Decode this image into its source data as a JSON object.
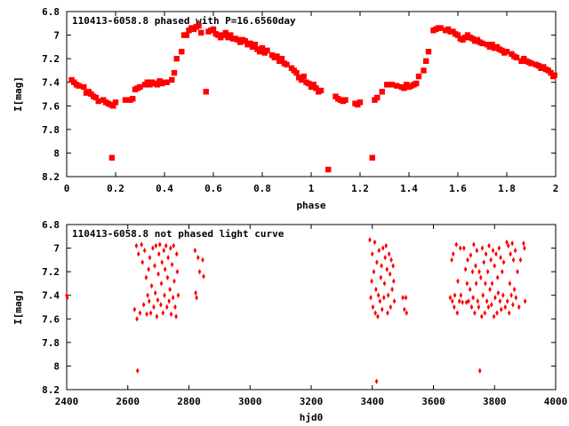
{
  "chart_data": [
    {
      "type": "scatter",
      "title": "110413-6058.8 phased with P=16.6560day",
      "xlabel": "phase",
      "ylabel": "I[mag]",
      "xlim": [
        0,
        2
      ],
      "ylim": [
        8.2,
        6.8
      ],
      "y_inverted": true,
      "xticks": [
        "0",
        "0.2",
        "0.4",
        "0.6",
        "0.8",
        "1",
        "1.2",
        "1.4",
        "1.6",
        "1.8",
        "2"
      ],
      "yticks": [
        "6.8",
        "7",
        "7.2",
        "7.4",
        "7.6",
        "7.8",
        "8",
        "8.2"
      ],
      "color": "#ff0000",
      "points": [
        [
          0.02,
          7.38
        ],
        [
          0.03,
          7.4
        ],
        [
          0.04,
          7.42
        ],
        [
          0.05,
          7.43
        ],
        [
          0.07,
          7.44
        ],
        [
          0.08,
          7.49
        ],
        [
          0.09,
          7.48
        ],
        [
          0.1,
          7.5
        ],
        [
          0.11,
          7.52
        ],
        [
          0.12,
          7.53
        ],
        [
          0.13,
          7.56
        ],
        [
          0.15,
          7.55
        ],
        [
          0.16,
          7.57
        ],
        [
          0.17,
          7.58
        ],
        [
          0.18,
          7.59
        ],
        [
          0.19,
          7.6
        ],
        [
          0.2,
          7.57
        ],
        [
          0.185,
          8.04
        ],
        [
          0.24,
          7.55
        ],
        [
          0.26,
          7.55
        ],
        [
          0.27,
          7.54
        ],
        [
          0.28,
          7.46
        ],
        [
          0.29,
          7.45
        ],
        [
          0.3,
          7.44
        ],
        [
          0.32,
          7.42
        ],
        [
          0.33,
          7.4
        ],
        [
          0.34,
          7.42
        ],
        [
          0.35,
          7.4
        ],
        [
          0.36,
          7.41
        ],
        [
          0.37,
          7.42
        ],
        [
          0.38,
          7.39
        ],
        [
          0.39,
          7.41
        ],
        [
          0.4,
          7.4
        ],
        [
          0.41,
          7.4
        ],
        [
          0.43,
          7.38
        ],
        [
          0.44,
          7.32
        ],
        [
          0.45,
          7.2
        ],
        [
          0.47,
          7.14
        ],
        [
          0.48,
          7.0
        ],
        [
          0.49,
          7.0
        ],
        [
          0.5,
          6.96
        ],
        [
          0.51,
          6.94
        ],
        [
          0.52,
          6.95
        ],
        [
          0.53,
          6.93
        ],
        [
          0.54,
          6.92
        ],
        [
          0.55,
          6.98
        ],
        [
          0.57,
          7.48
        ],
        [
          0.58,
          6.97
        ],
        [
          0.59,
          6.96
        ],
        [
          0.6,
          6.95
        ],
        [
          0.61,
          6.99
        ],
        [
          0.62,
          7.0
        ],
        [
          0.63,
          7.02
        ],
        [
          0.64,
          7.0
        ],
        [
          0.65,
          6.98
        ],
        [
          0.66,
          7.02
        ],
        [
          0.67,
          7.0
        ],
        [
          0.68,
          7.03
        ],
        [
          0.69,
          7.03
        ],
        [
          0.7,
          7.04
        ],
        [
          0.71,
          7.06
        ],
        [
          0.72,
          7.04
        ],
        [
          0.73,
          7.05
        ],
        [
          0.74,
          7.08
        ],
        [
          0.75,
          7.07
        ],
        [
          0.76,
          7.1
        ],
        [
          0.77,
          7.08
        ],
        [
          0.78,
          7.12
        ],
        [
          0.79,
          7.14
        ],
        [
          0.8,
          7.11
        ],
        [
          0.81,
          7.15
        ],
        [
          0.82,
          7.13
        ],
        [
          0.84,
          7.17
        ],
        [
          0.85,
          7.19
        ],
        [
          0.86,
          7.18
        ],
        [
          0.87,
          7.22
        ],
        [
          0.88,
          7.2
        ],
        [
          0.89,
          7.24
        ],
        [
          0.9,
          7.25
        ],
        [
          0.92,
          7.28
        ],
        [
          0.93,
          7.3
        ],
        [
          0.94,
          7.32
        ],
        [
          0.95,
          7.36
        ],
        [
          0.96,
          7.38
        ],
        [
          0.97,
          7.35
        ],
        [
          0.98,
          7.4
        ],
        [
          0.99,
          7.41
        ],
        [
          1.0,
          7.44
        ],
        [
          1.01,
          7.42
        ],
        [
          1.02,
          7.45
        ],
        [
          1.03,
          7.48
        ],
        [
          1.04,
          7.47
        ],
        [
          1.07,
          8.14
        ],
        [
          1.1,
          7.52
        ],
        [
          1.11,
          7.54
        ],
        [
          1.12,
          7.55
        ],
        [
          1.13,
          7.56
        ],
        [
          1.14,
          7.55
        ],
        [
          1.18,
          7.58
        ],
        [
          1.19,
          7.59
        ],
        [
          1.2,
          7.57
        ],
        [
          1.25,
          8.04
        ],
        [
          1.26,
          7.55
        ],
        [
          1.27,
          7.53
        ],
        [
          1.29,
          7.48
        ],
        [
          1.31,
          7.42
        ],
        [
          1.33,
          7.42
        ],
        [
          1.35,
          7.43
        ],
        [
          1.37,
          7.44
        ],
        [
          1.38,
          7.45
        ],
        [
          1.39,
          7.42
        ],
        [
          1.4,
          7.44
        ],
        [
          1.41,
          7.43
        ],
        [
          1.42,
          7.42
        ],
        [
          1.43,
          7.41
        ],
        [
          1.44,
          7.35
        ],
        [
          1.46,
          7.3
        ],
        [
          1.47,
          7.22
        ],
        [
          1.48,
          7.14
        ],
        [
          1.5,
          6.96
        ],
        [
          1.51,
          6.95
        ],
        [
          1.52,
          6.94
        ],
        [
          1.53,
          6.94
        ],
        [
          1.55,
          6.96
        ],
        [
          1.56,
          6.95
        ],
        [
          1.57,
          6.97
        ],
        [
          1.58,
          6.97
        ],
        [
          1.59,
          6.99
        ],
        [
          1.6,
          7.0
        ],
        [
          1.61,
          7.03
        ],
        [
          1.62,
          7.04
        ],
        [
          1.63,
          7.02
        ],
        [
          1.64,
          7.0
        ],
        [
          1.65,
          7.02
        ],
        [
          1.66,
          7.03
        ],
        [
          1.67,
          7.05
        ],
        [
          1.68,
          7.04
        ],
        [
          1.69,
          7.06
        ],
        [
          1.7,
          7.07
        ],
        [
          1.72,
          7.08
        ],
        [
          1.73,
          7.1
        ],
        [
          1.74,
          7.08
        ],
        [
          1.75,
          7.11
        ],
        [
          1.76,
          7.1
        ],
        [
          1.77,
          7.12
        ],
        [
          1.78,
          7.13
        ],
        [
          1.79,
          7.15
        ],
        [
          1.8,
          7.14
        ],
        [
          1.82,
          7.16
        ],
        [
          1.83,
          7.18
        ],
        [
          1.84,
          7.19
        ],
        [
          1.86,
          7.22
        ],
        [
          1.87,
          7.2
        ],
        [
          1.88,
          7.22
        ],
        [
          1.89,
          7.23
        ],
        [
          1.9,
          7.24
        ],
        [
          1.92,
          7.25
        ],
        [
          1.93,
          7.26
        ],
        [
          1.94,
          7.28
        ],
        [
          1.95,
          7.27
        ],
        [
          1.96,
          7.29
        ],
        [
          1.97,
          7.3
        ],
        [
          1.98,
          7.32
        ],
        [
          1.99,
          7.35
        ],
        [
          1.995,
          7.34
        ]
      ]
    },
    {
      "type": "scatter",
      "title": "110413-6058.8 not phased light curve",
      "xlabel": "hjd0",
      "ylabel": "I[mag]",
      "xlim": [
        2400,
        4000
      ],
      "ylim": [
        8.2,
        6.8
      ],
      "y_inverted": true,
      "xticks": [
        "2400",
        "2600",
        "2800",
        "3000",
        "3200",
        "3400",
        "3600",
        "3800",
        "4000"
      ],
      "yticks": [
        "6.8",
        "7",
        "7.2",
        "7.4",
        "7.6",
        "7.8",
        "8",
        "8.2"
      ],
      "color": "#ff0000",
      "points": [
        [
          2400,
          7.4
        ],
        [
          2402,
          7.42
        ],
        [
          2622,
          7.52
        ],
        [
          2628,
          6.98
        ],
        [
          2630,
          7.6
        ],
        [
          2632,
          8.04
        ],
        [
          2635,
          7.05
        ],
        [
          2640,
          7.55
        ],
        [
          2645,
          6.97
        ],
        [
          2648,
          7.12
        ],
        [
          2652,
          7.48
        ],
        [
          2655,
          7.02
        ],
        [
          2660,
          7.25
        ],
        [
          2662,
          7.56
        ],
        [
          2665,
          7.4
        ],
        [
          2668,
          7.18
        ],
        [
          2670,
          7.45
        ],
        [
          2672,
          7.08
        ],
        [
          2675,
          7.55
        ],
        [
          2678,
          7.32
        ],
        [
          2682,
          7.0
        ],
        [
          2685,
          7.5
        ],
        [
          2688,
          7.15
        ],
        [
          2690,
          7.38
        ],
        [
          2692,
          6.98
        ],
        [
          2695,
          7.58
        ],
        [
          2698,
          7.44
        ],
        [
          2700,
          7.22
        ],
        [
          2702,
          7.05
        ],
        [
          2705,
          6.97
        ],
        [
          2708,
          7.48
        ],
        [
          2710,
          7.3
        ],
        [
          2712,
          7.12
        ],
        [
          2715,
          7.55
        ],
        [
          2718,
          7.02
        ],
        [
          2720,
          7.4
        ],
        [
          2722,
          7.18
        ],
        [
          2725,
          6.98
        ],
        [
          2728,
          7.5
        ],
        [
          2730,
          7.25
        ],
        [
          2732,
          7.08
        ],
        [
          2735,
          7.45
        ],
        [
          2738,
          7.35
        ],
        [
          2740,
          7.0
        ],
        [
          2742,
          7.56
        ],
        [
          2745,
          7.14
        ],
        [
          2748,
          7.42
        ],
        [
          2750,
          6.98
        ],
        [
          2752,
          7.28
        ],
        [
          2755,
          7.5
        ],
        [
          2758,
          7.58
        ],
        [
          2760,
          7.05
        ],
        [
          2762,
          7.2
        ],
        [
          2765,
          7.4
        ],
        [
          2820,
          7.02
        ],
        [
          2822,
          7.38
        ],
        [
          2825,
          7.42
        ],
        [
          2830,
          7.08
        ],
        [
          2835,
          7.2
        ],
        [
          2845,
          7.1
        ],
        [
          2848,
          7.24
        ],
        [
          3392,
          6.93
        ],
        [
          3395,
          7.42
        ],
        [
          3398,
          7.28
        ],
        [
          3400,
          7.05
        ],
        [
          3402,
          7.5
        ],
        [
          3405,
          7.2
        ],
        [
          3408,
          6.95
        ],
        [
          3410,
          7.55
        ],
        [
          3412,
          7.35
        ],
        [
          3414,
          8.13
        ],
        [
          3415,
          7.12
        ],
        [
          3418,
          7.58
        ],
        [
          3420,
          7.4
        ],
        [
          3422,
          7.02
        ],
        [
          3425,
          7.45
        ],
        [
          3428,
          7.25
        ],
        [
          3430,
          7.15
        ],
        [
          3432,
          7.52
        ],
        [
          3435,
          7.0
        ],
        [
          3438,
          7.42
        ],
        [
          3440,
          7.3
        ],
        [
          3442,
          7.08
        ],
        [
          3445,
          6.98
        ],
        [
          3448,
          7.18
        ],
        [
          3450,
          7.55
        ],
        [
          3452,
          7.4
        ],
        [
          3455,
          7.05
        ],
        [
          3458,
          7.22
        ],
        [
          3460,
          7.5
        ],
        [
          3462,
          7.1
        ],
        [
          3465,
          7.35
        ],
        [
          3468,
          7.15
        ],
        [
          3470,
          7.28
        ],
        [
          3472,
          7.45
        ],
        [
          3500,
          7.42
        ],
        [
          3505,
          7.52
        ],
        [
          3510,
          7.42
        ],
        [
          3512,
          7.55
        ],
        [
          3655,
          7.42
        ],
        [
          3660,
          7.1
        ],
        [
          3662,
          7.45
        ],
        [
          3665,
          7.05
        ],
        [
          3668,
          7.5
        ],
        [
          3670,
          7.4
        ],
        [
          3675,
          6.97
        ],
        [
          3678,
          7.55
        ],
        [
          3680,
          7.28
        ],
        [
          3685,
          7.45
        ],
        [
          3688,
          7.0
        ],
        [
          3690,
          7.4
        ],
        [
          3695,
          7.46
        ],
        [
          3700,
          7.0
        ],
        [
          3705,
          7.18
        ],
        [
          3708,
          7.46
        ],
        [
          3710,
          7.3
        ],
        [
          3712,
          7.1
        ],
        [
          3715,
          7.45
        ],
        [
          3720,
          7.35
        ],
        [
          3722,
          7.06
        ],
        [
          3725,
          7.5
        ],
        [
          3728,
          7.2
        ],
        [
          3730,
          7.42
        ],
        [
          3732,
          6.97
        ],
        [
          3735,
          7.55
        ],
        [
          3738,
          7.15
        ],
        [
          3740,
          7.3
        ],
        [
          3742,
          7.02
        ],
        [
          3745,
          7.45
        ],
        [
          3748,
          7.5
        ],
        [
          3750,
          7.2
        ],
        [
          3752,
          8.04
        ],
        [
          3755,
          7.25
        ],
        [
          3758,
          7.58
        ],
        [
          3760,
          7.0
        ],
        [
          3762,
          7.4
        ],
        [
          3765,
          7.12
        ],
        [
          3768,
          7.55
        ],
        [
          3770,
          7.3
        ],
        [
          3772,
          7.05
        ],
        [
          3775,
          7.45
        ],
        [
          3778,
          7.2
        ],
        [
          3780,
          7.5
        ],
        [
          3782,
          6.98
        ],
        [
          3785,
          7.35
        ],
        [
          3788,
          7.1
        ],
        [
          3790,
          7.48
        ],
        [
          3792,
          7.3
        ],
        [
          3795,
          7.02
        ],
        [
          3798,
          7.58
        ],
        [
          3800,
          7.15
        ],
        [
          3802,
          7.42
        ],
        [
          3805,
          7.05
        ],
        [
          3808,
          7.55
        ],
        [
          3810,
          7.25
        ],
        [
          3812,
          7.38
        ],
        [
          3815,
          7.0
        ],
        [
          3818,
          7.45
        ],
        [
          3820,
          7.08
        ],
        [
          3822,
          7.52
        ],
        [
          3825,
          7.2
        ],
        [
          3828,
          7.4
        ],
        [
          3830,
          7.12
        ],
        [
          3835,
          7.5
        ],
        [
          3840,
          6.95
        ],
        [
          3842,
          7.45
        ],
        [
          3845,
          6.98
        ],
        [
          3848,
          7.55
        ],
        [
          3850,
          7.3
        ],
        [
          3852,
          7.05
        ],
        [
          3855,
          7.4
        ],
        [
          3858,
          6.96
        ],
        [
          3860,
          7.48
        ],
        [
          3862,
          7.1
        ],
        [
          3865,
          7.35
        ],
        [
          3868,
          7.02
        ],
        [
          3870,
          7.42
        ],
        [
          3875,
          7.2
        ],
        [
          3880,
          7.5
        ],
        [
          3885,
          7.1
        ],
        [
          3895,
          6.96
        ],
        [
          3898,
          7.0
        ],
        [
          3900,
          7.45
        ]
      ]
    }
  ]
}
